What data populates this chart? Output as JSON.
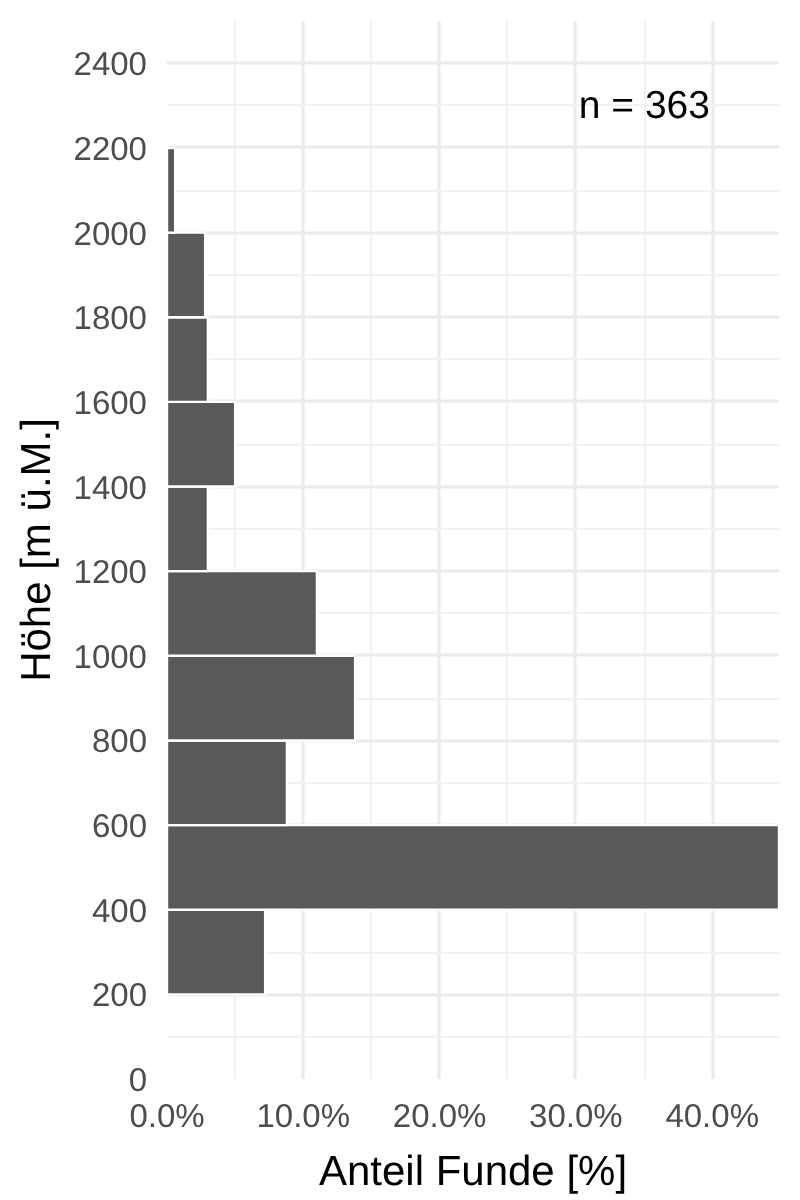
{
  "chart_data": {
    "type": "histogram",
    "orientation": "horizontal",
    "bins": [
      200,
      400,
      600,
      800,
      1000,
      1200,
      1400,
      1600,
      1800,
      2000,
      2200
    ],
    "values": [
      7.2,
      44.9,
      8.8,
      13.8,
      11.0,
      3.0,
      5.0,
      3.0,
      2.8,
      0.6
    ],
    "color": "#595959",
    "xlabel": "Anteil Funde [%]",
    "ylabel": "Höhe [m ü.M.]",
    "xlim": [
      0,
      44.9
    ],
    "xticks": [
      {
        "value": 0,
        "label": "0.0%"
      },
      {
        "value": 10,
        "label": "10.0%"
      },
      {
        "value": 20,
        "label": "20.0%"
      },
      {
        "value": 30,
        "label": "30.0%"
      },
      {
        "value": 40,
        "label": "40.0%"
      }
    ],
    "ylim": [
      0,
      2500
    ],
    "yticks": [
      0,
      200,
      400,
      600,
      800,
      1000,
      1200,
      1400,
      1600,
      1800,
      2000,
      2200,
      2400
    ],
    "grid": true,
    "annotations": [
      "n = 363"
    ]
  }
}
